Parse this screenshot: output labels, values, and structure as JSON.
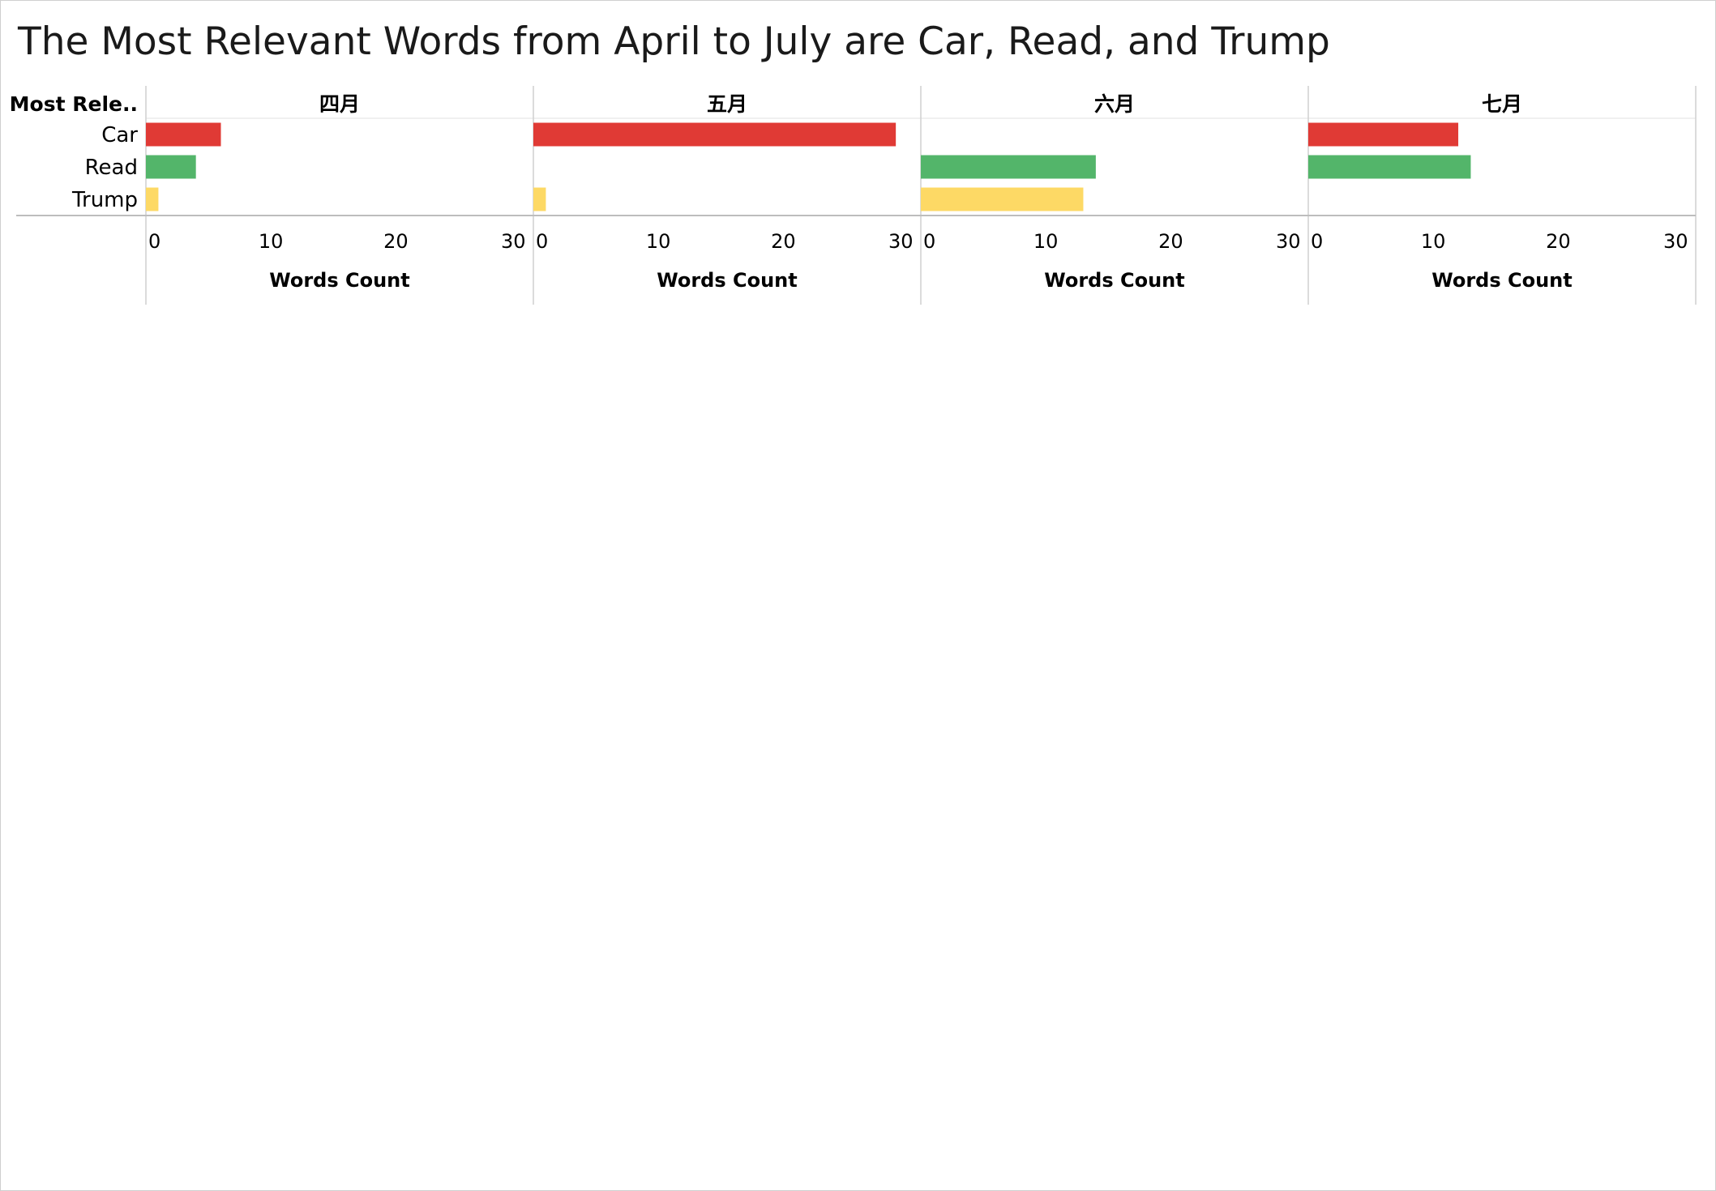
{
  "title": "The Most Relevant Words from April to July are Car, Read, and Trump",
  "row_header": "Most Rele..",
  "chart_data": {
    "type": "bar",
    "orientation": "horizontal",
    "title": "The Most Relevant Words from April to July are Car, Read, and Trump",
    "panels": [
      "四月",
      "五月",
      "六月",
      "七月"
    ],
    "categories": [
      "Car",
      "Read",
      "Trump"
    ],
    "colors": {
      "Car": "#e03a35",
      "Read": "#53b56a",
      "Trump": "#fdd965"
    },
    "values": {
      "四月": [
        6,
        4,
        1
      ],
      "五月": [
        29,
        0,
        1
      ],
      "六月": [
        0,
        14,
        13
      ],
      "七月": [
        12,
        13,
        0
      ]
    },
    "xlabel": "Words Count",
    "ylabel": "Most Rele..",
    "xlim": [
      0,
      31
    ],
    "xticks": [
      0,
      10,
      20,
      30
    ],
    "grid": false
  }
}
